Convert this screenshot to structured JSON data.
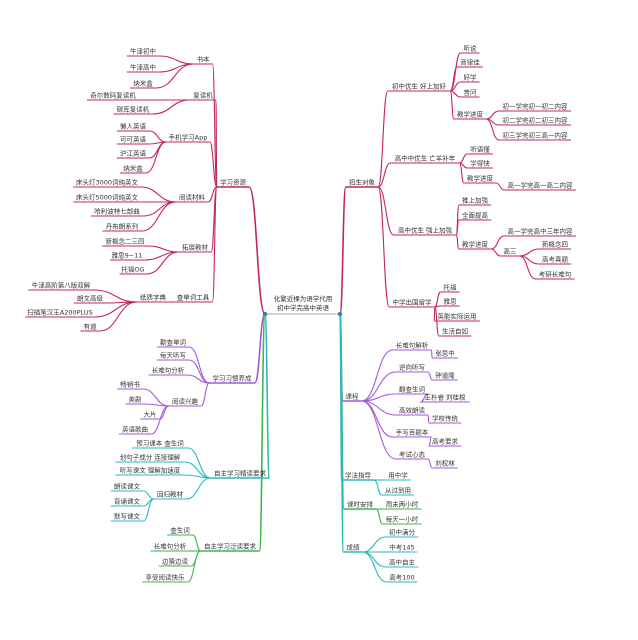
{
  "root": {
    "line1": "化繁近棵为语学代用",
    "line2": "初中学完高中英语"
  },
  "colors": {
    "pink": "#c2245e",
    "purple": "#a05ad8",
    "teal": "#2bb8c0",
    "green": "#3fb54e",
    "hub": "#3a78c2"
  },
  "left": [
    {
      "label": "学习资源",
      "color": "pink",
      "children": [
        {
          "label": "书本",
          "children": [
            {
              "label": "牛津初中"
            },
            {
              "label": "牛津高中"
            },
            {
              "label": "纳米盒"
            }
          ]
        },
        {
          "label": "复读机",
          "children": [
            {
              "label": "奇尔数码复读机"
            },
            {
              "label": "碳库复读机"
            }
          ]
        },
        {
          "label": "手机学习App",
          "children": [
            {
              "label": "懒人英语"
            },
            {
              "label": "可可英语"
            },
            {
              "label": "沪江英语"
            },
            {
              "label": "纳米盒"
            }
          ]
        },
        {
          "label": "阅读材料",
          "children": [
            {
              "label": "床头灯3000词纯英文"
            },
            {
              "label": "床头灯5000词纯英文"
            },
            {
              "label": "哈利波特七部曲"
            },
            {
              "label": "丹布朗系列"
            }
          ]
        },
        {
          "label": "拓展教材",
          "children": [
            {
              "label": "新概念二三四"
            },
            {
              "label": "雅思9~11"
            },
            {
              "label": "托福OG"
            }
          ]
        },
        {
          "label": "查单词工具",
          "children": [
            {
              "label": "纸质字典",
              "children": [
                {
                  "label": "牛津高阶第八版双解"
                },
                {
                  "label": "朗文高级"
                },
                {
                  "label": "扫描笔汉王A200PLUS"
                },
                {
                  "label": "有道"
                }
              ]
            }
          ]
        }
      ]
    },
    {
      "label": "学习习惯养成",
      "color": "purple",
      "children": [
        {
          "label": "勤查单词"
        },
        {
          "label": "每天听写"
        },
        {
          "label": "长难句分析"
        },
        {
          "label": "阅读兴趣",
          "children": [
            {
              "label": "畅销书"
            },
            {
              "label": "美剧"
            },
            {
              "label": "大片"
            },
            {
              "label": "英语歌曲"
            }
          ]
        }
      ]
    },
    {
      "label": "自主学习精读要求",
      "color": "teal",
      "children": [
        {
          "label": "预习课本 查生词"
        },
        {
          "label": "划句子成分 连接理解"
        },
        {
          "label": "听写课文 理解加速度"
        },
        {
          "label": "回归教材",
          "children": [
            {
              "label": "朗读课文"
            },
            {
              "label": "背诵课文"
            },
            {
              "label": "默写课文"
            }
          ]
        }
      ]
    },
    {
      "label": "自主学习泛读要求",
      "color": "green",
      "children": [
        {
          "label": "查生词"
        },
        {
          "label": "长难句分析"
        },
        {
          "label": "边猜边读"
        },
        {
          "label": "享受阅读快乐"
        }
      ]
    }
  ],
  "right": [
    {
      "label": "招生对象",
      "color": "pink",
      "children": [
        {
          "label": "初中优生 好上加好",
          "children": [
            {
              "label": "听说"
            },
            {
              "label": "音律佳"
            },
            {
              "label": "好学"
            },
            {
              "label": "普问"
            },
            {
              "label": "教学进度",
              "children": [
                {
                  "label": "初一学完初一初二内容"
                },
                {
                  "label": "初二学完初二初三内容"
                },
                {
                  "label": "初三学完初三高一内容"
                }
              ]
            }
          ]
        },
        {
          "label": "高中中优生 亡羊补牢",
          "children": [
            {
              "label": "听语懂"
            },
            {
              "label": "学得快"
            },
            {
              "label": "教学进度",
              "children": [
                {
                  "label": "高一学完高一高二内容"
                }
              ]
            }
          ]
        },
        {
          "label": "高中优生 强上加强",
          "children": [
            {
              "label": "推上加强"
            },
            {
              "label": "全面提高"
            },
            {
              "label": "教学进度",
              "children": [
                {
                  "label": "高一学完高中三年内容"
                },
                {
                  "label": "高三",
                  "children": [
                    {
                      "label": "新概念四"
                    },
                    {
                      "label": "高考真题"
                    },
                    {
                      "label": "考研长难句"
                    }
                  ]
                }
              ]
            }
          ]
        },
        {
          "label": "中学出国留学",
          "children": [
            {
              "label": "托福"
            },
            {
              "label": "雅思"
            },
            {
              "label": "英能实际运用"
            },
            {
              "label": "生活自如"
            }
          ]
        }
      ]
    },
    {
      "label": "课程",
      "color": "purple",
      "children": [
        {
          "label": "长难句解析",
          "children": [
            {
              "label": "张思中"
            }
          ]
        },
        {
          "label": "逆向听写",
          "children": [
            {
              "label": "钟道隆"
            }
          ]
        },
        {
          "label": "翻查生词",
          "children": [
            {
              "label": "王朴睿 刘桂根"
            }
          ]
        },
        {
          "label": "高效朗读",
          "children": [
            {
              "label": "学校传统"
            }
          ]
        },
        {
          "label": "手写百题本",
          "children": [
            {
              "label": "高考要求"
            }
          ]
        },
        {
          "label": "考试心态",
          "children": [
            {
              "label": "刘权林"
            }
          ]
        }
      ]
    },
    {
      "label": "学法指导",
      "color": "teal",
      "children": [
        {
          "label": "用中学"
        },
        {
          "label": "从过到用"
        }
      ]
    },
    {
      "label": "课时安排",
      "color": "green",
      "children": [
        {
          "label": "周末两小时"
        },
        {
          "label": "每天一小时"
        }
      ]
    },
    {
      "label": "成绩",
      "color": "teal",
      "children": [
        {
          "label": "初中满分"
        },
        {
          "label": "中考145"
        },
        {
          "label": "高中自主"
        },
        {
          "label": "高考100"
        }
      ]
    }
  ]
}
